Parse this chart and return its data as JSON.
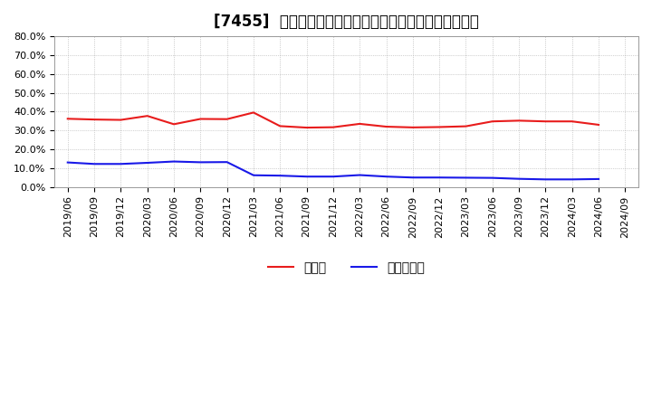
{
  "title": "[7455]  現預金、有利子負債の総資産に対する比率の推移",
  "ylim": [
    0.0,
    0.8
  ],
  "yticks": [
    0.0,
    0.1,
    0.2,
    0.3,
    0.4,
    0.5,
    0.6,
    0.7,
    0.8
  ],
  "ytick_labels": [
    "0.0%",
    "10.0%",
    "20.0%",
    "30.0%",
    "40.0%",
    "50.0%",
    "60.0%",
    "70.0%",
    "80.0%"
  ],
  "x_labels": [
    "2019/06",
    "2019/09",
    "2019/12",
    "2020/03",
    "2020/06",
    "2020/09",
    "2020/12",
    "2021/03",
    "2021/06",
    "2021/09",
    "2021/12",
    "2022/03",
    "2022/06",
    "2022/09",
    "2022/12",
    "2023/03",
    "2023/06",
    "2023/09",
    "2023/12",
    "2024/03",
    "2024/06",
    "2024/09"
  ],
  "cash_values": [
    0.362,
    0.358,
    0.356,
    0.377,
    0.333,
    0.361,
    0.36,
    0.395,
    0.323,
    0.315,
    0.317,
    0.335,
    0.32,
    0.316,
    0.318,
    0.322,
    0.348,
    0.352,
    0.348,
    0.348,
    0.33,
    null
  ],
  "debt_values": [
    0.13,
    0.122,
    0.122,
    0.128,
    0.135,
    0.131,
    0.132,
    0.062,
    0.06,
    0.055,
    0.055,
    0.063,
    0.055,
    0.05,
    0.05,
    0.049,
    0.048,
    0.043,
    0.04,
    0.04,
    0.042,
    null
  ],
  "cash_color": "#e81c1c",
  "debt_color": "#1919e8",
  "legend_label_cash": "現預金",
  "legend_label_debt": "有利子負債",
  "background_color": "#ffffff",
  "grid_color": "#aaaaaa",
  "title_fontsize": 12,
  "tick_fontsize": 8,
  "legend_fontsize": 10
}
